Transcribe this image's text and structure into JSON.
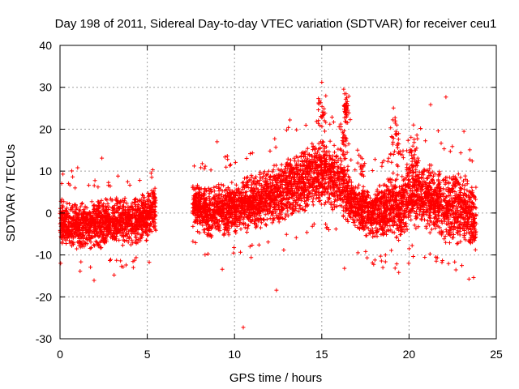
{
  "chart_data": {
    "type": "scatter",
    "title": "Day 198 of 2011, Sidereal Day-to-day VTEC variation (SDTVAR) for receiver ceu1",
    "xlabel": "GPS time / hours",
    "ylabel": "SDTVAR / TECUs",
    "xlim": [
      0,
      25
    ],
    "ylim": [
      -30,
      40
    ],
    "xticks": [
      0,
      5,
      10,
      15,
      20,
      25
    ],
    "yticks": [
      -30,
      -20,
      -10,
      0,
      10,
      20,
      30,
      40
    ],
    "grid": true,
    "marker": "+",
    "color": "#ff0000",
    "trend": [
      {
        "x": 0.0,
        "y": -2
      },
      {
        "x": 1.0,
        "y": -3
      },
      {
        "x": 2.0,
        "y": -3
      },
      {
        "x": 3.0,
        "y": -2
      },
      {
        "x": 4.0,
        "y": -2
      },
      {
        "x": 5.0,
        "y": -1
      },
      {
        "x": 5.5,
        "y": 1
      },
      {
        "x": 7.6,
        "y": 2
      },
      {
        "x": 8.5,
        "y": 0
      },
      {
        "x": 9.5,
        "y": 1
      },
      {
        "x": 10.5,
        "y": 2
      },
      {
        "x": 11.5,
        "y": 3
      },
      {
        "x": 12.5,
        "y": 5
      },
      {
        "x": 13.5,
        "y": 7
      },
      {
        "x": 14.5,
        "y": 9
      },
      {
        "x": 15.0,
        "y": 10
      },
      {
        "x": 15.5,
        "y": 9
      },
      {
        "x": 16.0,
        "y": 8
      },
      {
        "x": 16.5,
        "y": 4
      },
      {
        "x": 17.0,
        "y": 1
      },
      {
        "x": 18.0,
        "y": 0
      },
      {
        "x": 19.0,
        "y": 2
      },
      {
        "x": 19.5,
        "y": 1
      },
      {
        "x": 20.0,
        "y": 5
      },
      {
        "x": 21.0,
        "y": 4
      },
      {
        "x": 22.0,
        "y": 2
      },
      {
        "x": 23.0,
        "y": 1
      },
      {
        "x": 23.8,
        "y": -1
      }
    ],
    "spread": [
      {
        "x": 0.0,
        "s": 3.5
      },
      {
        "x": 5.5,
        "s": 3.5
      },
      {
        "x": 7.6,
        "s": 3.5
      },
      {
        "x": 10.0,
        "s": 4
      },
      {
        "x": 13.0,
        "s": 4.5
      },
      {
        "x": 15.5,
        "s": 5
      },
      {
        "x": 17.0,
        "s": 3.5
      },
      {
        "x": 20.0,
        "s": 5
      },
      {
        "x": 22.0,
        "s": 5.5
      },
      {
        "x": 23.8,
        "s": 5
      }
    ],
    "segments": [
      [
        0.0,
        5.5
      ],
      [
        7.6,
        23.85
      ]
    ],
    "points_per_hour": 260,
    "features": [
      {
        "x": 16.4,
        "y": 25,
        "count": 40,
        "sx": 0.08,
        "sy": 2
      },
      {
        "x": 16.3,
        "y": 18,
        "count": 30,
        "sx": 0.1,
        "sy": 3
      },
      {
        "x": 15.0,
        "y": 25,
        "count": 25,
        "sx": 0.15,
        "sy": 3
      },
      {
        "x": 19.2,
        "y": 16,
        "count": 30,
        "sx": 0.12,
        "sy": 3
      },
      {
        "x": 20.2,
        "y": 13,
        "count": 25,
        "sx": 0.25,
        "sy": 2
      },
      {
        "x": 17.2,
        "y": 11,
        "count": 15,
        "sx": 0.15,
        "sy": 2
      }
    ],
    "outliers": [
      {
        "x": 15.0,
        "y": 31.2
      },
      {
        "x": 10.5,
        "y": -27.3
      },
      {
        "x": 3.1,
        "y": -14.8
      },
      {
        "x": 23.7,
        "y": -15.4
      },
      {
        "x": 9.3,
        "y": -13.4
      },
      {
        "x": 18.5,
        "y": -13.0
      },
      {
        "x": 16.3,
        "y": -13.2
      },
      {
        "x": 2.4,
        "y": 13.1
      },
      {
        "x": 9.0,
        "y": 17.0
      },
      {
        "x": 4.2,
        "y": -13.0
      },
      {
        "x": 19.3,
        "y": 21.0
      }
    ]
  }
}
